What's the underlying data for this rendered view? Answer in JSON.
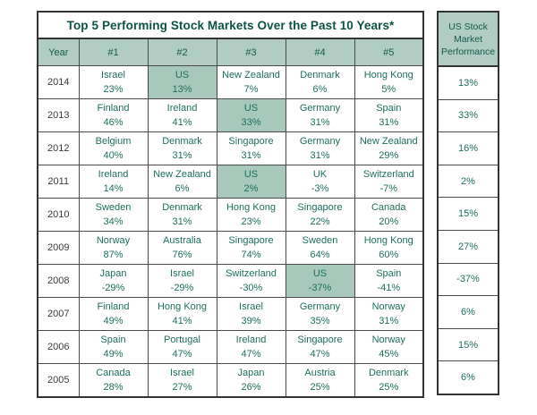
{
  "colors": {
    "header_background": "#b1ccc2",
    "us_highlight_background": "#a7c8bb",
    "title_text": "#0a5345",
    "cell_text": "#1e6f5e",
    "year_text": "#3b3b3b",
    "border": "#333333"
  },
  "chart_data": {
    "type": "table",
    "title": "Top 5 Performing Stock Markets Over the Past 10 Years*",
    "columns": [
      "Year",
      "#1",
      "#2",
      "#3",
      "#4",
      "#5"
    ],
    "rows": [
      {
        "year": "2014",
        "entries": [
          {
            "country": "Israel",
            "value": "23%",
            "highlight": false
          },
          {
            "country": "US",
            "value": "13%",
            "highlight": true
          },
          {
            "country": "New Zealand",
            "value": "7%",
            "highlight": false
          },
          {
            "country": "Denmark",
            "value": "6%",
            "highlight": false
          },
          {
            "country": "Hong Kong",
            "value": "5%",
            "highlight": false
          }
        ]
      },
      {
        "year": "2013",
        "entries": [
          {
            "country": "Finland",
            "value": "46%",
            "highlight": false
          },
          {
            "country": "Ireland",
            "value": "41%",
            "highlight": false
          },
          {
            "country": "US",
            "value": "33%",
            "highlight": true
          },
          {
            "country": "Germany",
            "value": "31%",
            "highlight": false
          },
          {
            "country": "Spain",
            "value": "31%",
            "highlight": false
          }
        ]
      },
      {
        "year": "2012",
        "entries": [
          {
            "country": "Belgium",
            "value": "40%",
            "highlight": false
          },
          {
            "country": "Denmark",
            "value": "31%",
            "highlight": false
          },
          {
            "country": "Singapore",
            "value": "31%",
            "highlight": false
          },
          {
            "country": "Germany",
            "value": "31%",
            "highlight": false
          },
          {
            "country": "New Zealand",
            "value": "29%",
            "highlight": false
          }
        ]
      },
      {
        "year": "2011",
        "entries": [
          {
            "country": "Ireland",
            "value": "14%",
            "highlight": false
          },
          {
            "country": "New Zealand",
            "value": "6%",
            "highlight": false
          },
          {
            "country": "US",
            "value": "2%",
            "highlight": true
          },
          {
            "country": "UK",
            "value": "-3%",
            "highlight": false
          },
          {
            "country": "Switzerland",
            "value": "-7%",
            "highlight": false
          }
        ]
      },
      {
        "year": "2010",
        "entries": [
          {
            "country": "Sweden",
            "value": "34%",
            "highlight": false
          },
          {
            "country": "Denmark",
            "value": "31%",
            "highlight": false
          },
          {
            "country": "Hong Kong",
            "value": "23%",
            "highlight": false
          },
          {
            "country": "Singapore",
            "value": "22%",
            "highlight": false
          },
          {
            "country": "Canada",
            "value": "20%",
            "highlight": false
          }
        ]
      },
      {
        "year": "2009",
        "entries": [
          {
            "country": "Norway",
            "value": "87%",
            "highlight": false
          },
          {
            "country": "Australia",
            "value": "76%",
            "highlight": false
          },
          {
            "country": "Singapore",
            "value": "74%",
            "highlight": false
          },
          {
            "country": "Sweden",
            "value": "64%",
            "highlight": false
          },
          {
            "country": "Hong Kong",
            "value": "60%",
            "highlight": false
          }
        ]
      },
      {
        "year": "2008",
        "entries": [
          {
            "country": "Japan",
            "value": "-29%",
            "highlight": false
          },
          {
            "country": "Israel",
            "value": "-29%",
            "highlight": false
          },
          {
            "country": "Switzerland",
            "value": "-30%",
            "highlight": false
          },
          {
            "country": "US",
            "value": "-37%",
            "highlight": true
          },
          {
            "country": "Spain",
            "value": "-41%",
            "highlight": false
          }
        ]
      },
      {
        "year": "2007",
        "entries": [
          {
            "country": "Finland",
            "value": "49%",
            "highlight": false
          },
          {
            "country": "Hong Kong",
            "value": "41%",
            "highlight": false
          },
          {
            "country": "Israel",
            "value": "39%",
            "highlight": false
          },
          {
            "country": "Germany",
            "value": "35%",
            "highlight": false
          },
          {
            "country": "Norway",
            "value": "31%",
            "highlight": false
          }
        ]
      },
      {
        "year": "2006",
        "entries": [
          {
            "country": "Spain",
            "value": "49%",
            "highlight": false
          },
          {
            "country": "Portugal",
            "value": "47%",
            "highlight": false
          },
          {
            "country": "Ireland",
            "value": "47%",
            "highlight": false
          },
          {
            "country": "Singapore",
            "value": "47%",
            "highlight": false
          },
          {
            "country": "Norway",
            "value": "45%",
            "highlight": false
          }
        ]
      },
      {
        "year": "2005",
        "entries": [
          {
            "country": "Canada",
            "value": "28%",
            "highlight": false
          },
          {
            "country": "Israel",
            "value": "27%",
            "highlight": false
          },
          {
            "country": "Japan",
            "value": "26%",
            "highlight": false
          },
          {
            "country": "Austria",
            "value": "25%",
            "highlight": false
          },
          {
            "country": "Denmark",
            "value": "25%",
            "highlight": false
          }
        ]
      }
    ],
    "us_column": {
      "header": "US Stock Market Performance",
      "values": [
        "13%",
        "33%",
        "16%",
        "2%",
        "15%",
        "27%",
        "-37%",
        "6%",
        "15%",
        "6%"
      ]
    }
  }
}
